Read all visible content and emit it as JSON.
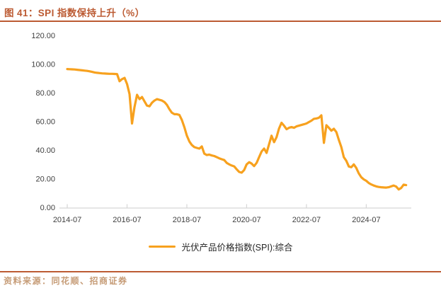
{
  "header": {
    "title": "图 41：SPI 指数保持上升（%）"
  },
  "footer": {
    "source": "资料来源：同花顺、招商证券"
  },
  "colors": {
    "accent": "#BC5B33",
    "line": "#F7A11E",
    "source_text": "#C69C77",
    "axis_text": "#404040",
    "axis_line": "#D6D6D6",
    "legend_text": "#262626"
  },
  "chart_data": {
    "type": "line",
    "title": "图 41：SPI 指数保持上升（%）",
    "xlabel": "",
    "ylabel": "",
    "ylim": [
      0,
      120
    ],
    "grid": false,
    "legend_position": "bottom",
    "y_ticks": [
      "120.00",
      "100.00",
      "80.00",
      "60.00",
      "40.00",
      "20.00",
      "0.00"
    ],
    "x_ticks": [
      {
        "label": "2014-07",
        "month_index": 0
      },
      {
        "label": "2016-07",
        "month_index": 24
      },
      {
        "label": "2018-07",
        "month_index": 48
      },
      {
        "label": "2020-07",
        "month_index": 72
      },
      {
        "label": "2022-07",
        "month_index": 96
      },
      {
        "label": "2024-07",
        "month_index": 120
      }
    ],
    "series": [
      {
        "name": "光伏产品价格指数(SPI):综合",
        "color": "#F7A11E",
        "frequency": "monthly",
        "start": "2014-07",
        "end": "2025-11",
        "values": [
          96.5,
          96.4,
          96.3,
          96.2,
          96.0,
          95.8,
          95.6,
          95.4,
          95.2,
          94.9,
          94.5,
          94.1,
          93.9,
          93.7,
          93.5,
          93.4,
          93.3,
          93.2,
          93.2,
          93.1,
          93.0,
          88.0,
          89.5,
          90.3,
          86.0,
          79.0,
          58.5,
          70.0,
          78.5,
          75.5,
          77.0,
          74.0,
          71.0,
          70.5,
          73.0,
          74.5,
          75.5,
          75.0,
          74.5,
          73.5,
          71.5,
          68.5,
          66.0,
          65.0,
          65.0,
          64.5,
          61.0,
          56.0,
          50.0,
          46.0,
          43.5,
          42.0,
          41.5,
          41.0,
          42.5,
          37.5,
          36.5,
          36.8,
          36.2,
          35.8,
          35.0,
          34.2,
          33.6,
          33.0,
          31.0,
          30.0,
          29.2,
          28.6,
          26.5,
          24.7,
          24.2,
          26.0,
          30.0,
          31.5,
          30.5,
          28.8,
          31.0,
          35.0,
          39.0,
          41.0,
          38.0,
          44.0,
          50.0,
          45.5,
          49.0,
          55.0,
          59.0,
          57.0,
          54.5,
          55.5,
          56.0,
          55.5,
          56.5,
          57.0,
          57.5,
          58.0,
          58.5,
          59.5,
          60.5,
          61.8,
          62.0,
          62.5,
          64.2,
          45.0,
          57.3,
          55.5,
          53.5,
          54.8,
          52.5,
          47.0,
          42.0,
          35.0,
          32.5,
          28.5,
          28.0,
          30.0,
          27.5,
          23.7,
          21.0,
          19.5,
          18.5,
          17.0,
          16.0,
          15.2,
          14.6,
          14.2,
          14.0,
          13.9,
          13.8,
          14.0,
          14.6,
          15.2,
          14.5,
          12.5,
          13.5,
          15.8,
          15.5
        ]
      }
    ]
  }
}
